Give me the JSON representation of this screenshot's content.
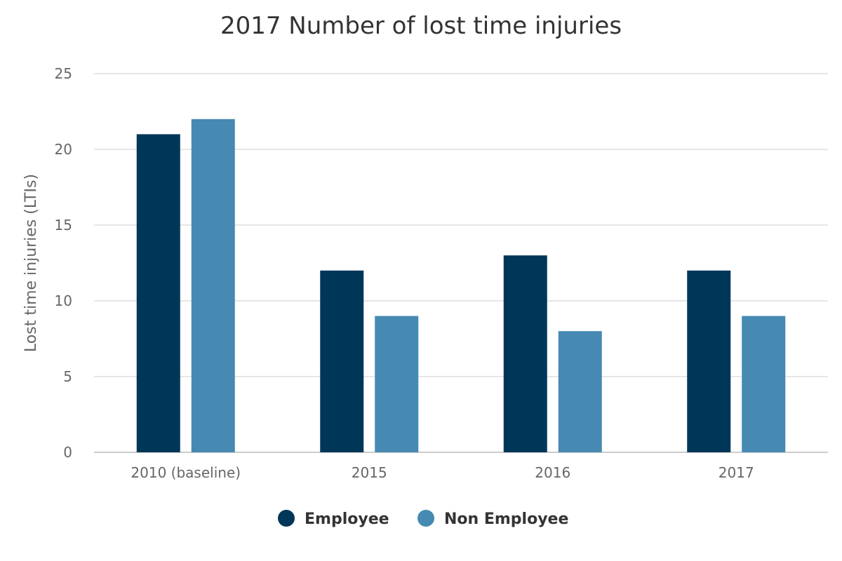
{
  "chart_data": {
    "type": "bar",
    "title": "2017 Number of lost time injuries",
    "xlabel": "",
    "ylabel": "Lost time injuries (LTIs)",
    "ylim": [
      0,
      25
    ],
    "yticks": [
      0,
      5,
      10,
      15,
      20,
      25
    ],
    "categories": [
      "2010 (baseline)",
      "2015",
      "2016",
      "2017"
    ],
    "series": [
      {
        "name": "Employee",
        "color": "#003658",
        "values": [
          21,
          12,
          13,
          12
        ]
      },
      {
        "name": "Non Employee",
        "color": "#4689b2",
        "values": [
          22,
          9,
          8,
          9
        ]
      }
    ],
    "grid": true,
    "legend": "bottom-center"
  }
}
